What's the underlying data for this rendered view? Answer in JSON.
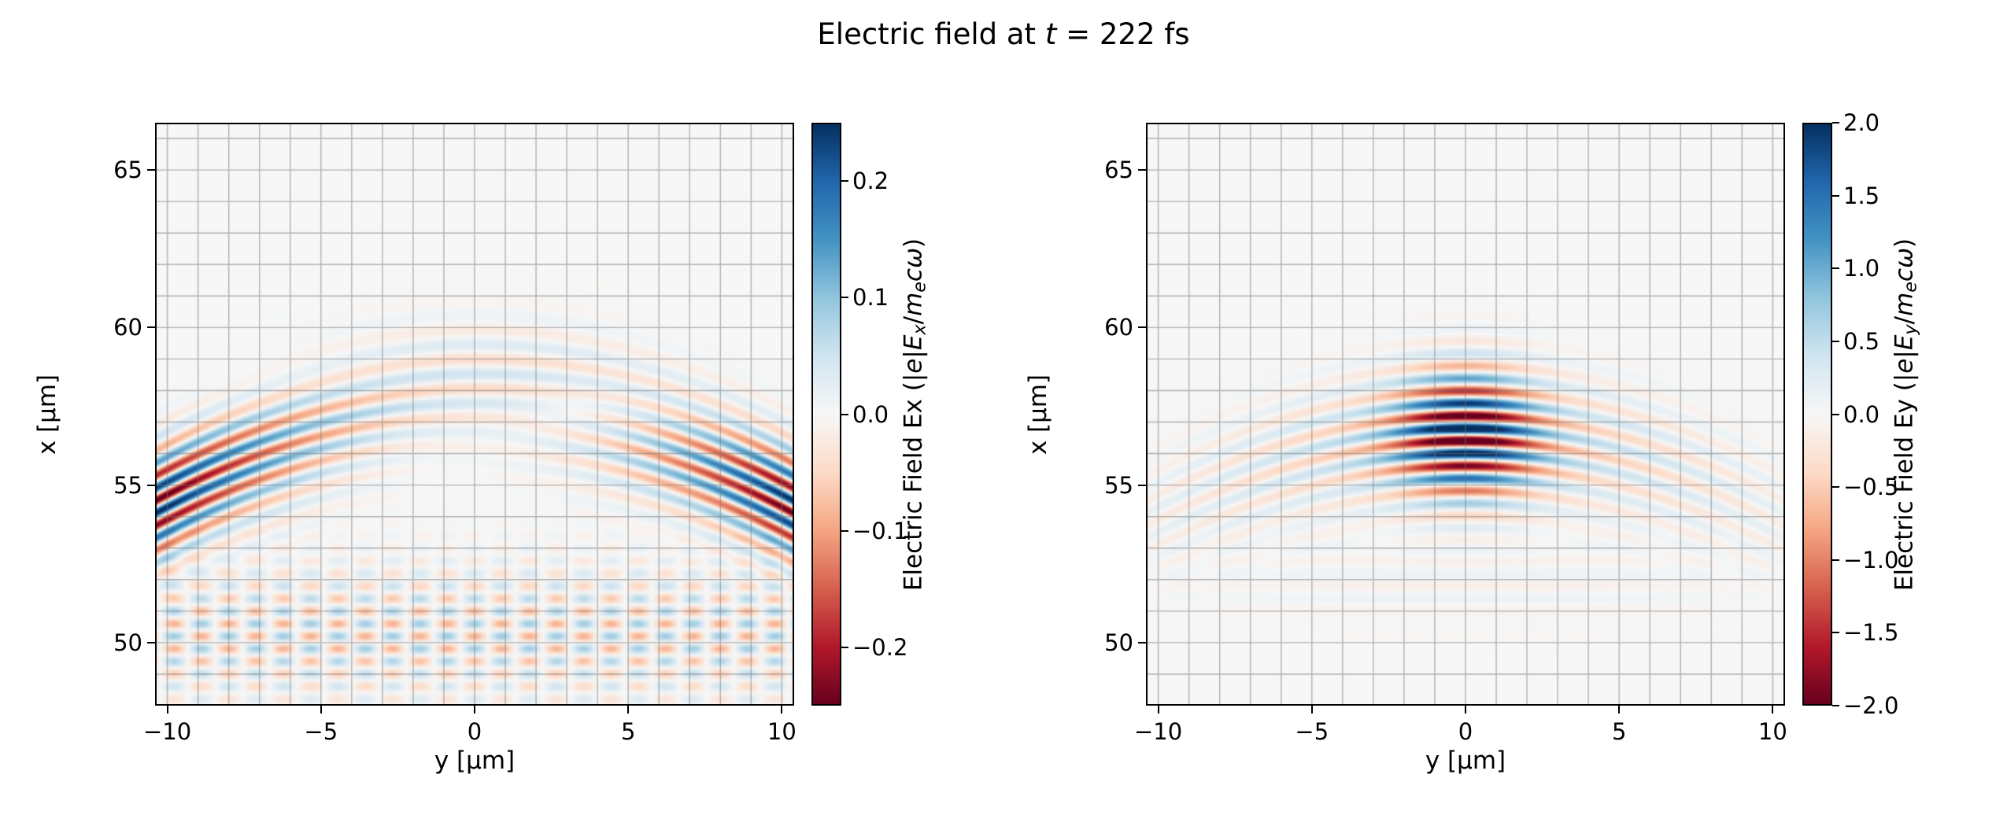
{
  "figure": {
    "title_parts": [
      {
        "t": "Electric field at ",
        "s": "n"
      },
      {
        "t": "t",
        "s": "i"
      },
      {
        "t": " = 222 fs",
        "s": "n"
      }
    ]
  },
  "colormap": {
    "name": "RdBu",
    "stops": [
      "#67001f",
      "#b2182b",
      "#d6604d",
      "#f4a582",
      "#fddbc7",
      "#f7f7f7",
      "#d1e5f0",
      "#92c5de",
      "#4393c3",
      "#2166ac",
      "#053061"
    ]
  },
  "chart_data": [
    {
      "type": "heatmap",
      "panel": "Ex",
      "xlabel": "y [μm]",
      "ylabel": "x [μm]",
      "xlim": [
        -10.4,
        10.4
      ],
      "ylim": [
        48.0,
        66.5
      ],
      "xticks": [
        {
          "v": -10,
          "label": "−10"
        },
        {
          "v": -5,
          "label": "−5"
        },
        {
          "v": 0,
          "label": "0"
        },
        {
          "v": 5,
          "label": "5"
        },
        {
          "v": 10,
          "label": "10"
        }
      ],
      "yticks": [
        {
          "v": 50,
          "label": "50"
        },
        {
          "v": 55,
          "label": "55"
        },
        {
          "v": 60,
          "label": "60"
        },
        {
          "v": 65,
          "label": "65"
        }
      ],
      "grid": {
        "x_spacing": 1,
        "y_spacing": 1,
        "color": "rgba(120,120,120,0.55)"
      },
      "colorbar": {
        "vmin": -0.25,
        "vmax": 0.25,
        "ticks": [
          {
            "v": 0.2,
            "label": "0.2"
          },
          {
            "v": 0.1,
            "label": "0.1"
          },
          {
            "v": 0.0,
            "label": "0.0"
          },
          {
            "v": -0.1,
            "label": "−0.1"
          },
          {
            "v": -0.2,
            "label": "−0.2"
          }
        ],
        "label_parts": [
          {
            "t": "Electric Field Ex (|",
            "s": "n"
          },
          {
            "t": "e",
            "s": "i"
          },
          {
            "t": "|",
            "s": "n"
          },
          {
            "t": "E",
            "s": "i"
          },
          {
            "t": "x",
            "s": "is"
          },
          {
            "t": "/",
            "s": "n"
          },
          {
            "t": "m",
            "s": "i"
          },
          {
            "t": "e",
            "s": "is"
          },
          {
            "t": "c",
            "s": "i"
          },
          {
            "t": "ω",
            "s": "i"
          },
          {
            "t": ")",
            "s": "n"
          }
        ]
      },
      "field_model": {
        "kind": "longitudinal",
        "wavelength_um": 0.8,
        "x_focus": 57.0,
        "front_curvature_R": 20,
        "env_sigma_x": 1.7,
        "amp": 0.26,
        "transverse_power": 1.6,
        "center_even_amp": 0.05,
        "bottom_wave_amp": 0.045,
        "bottom_wave_x0": 50.3,
        "bottom_wave_sigma": 2.1,
        "bottom_wave_slope": 0.45
      }
    },
    {
      "type": "heatmap",
      "panel": "Ey",
      "xlabel": "y [μm]",
      "ylabel": "x [μm]",
      "xlim": [
        -10.4,
        10.4
      ],
      "ylim": [
        48.0,
        66.5
      ],
      "xticks": [
        {
          "v": -10,
          "label": "−10"
        },
        {
          "v": -5,
          "label": "−5"
        },
        {
          "v": 0,
          "label": "0"
        },
        {
          "v": 5,
          "label": "5"
        },
        {
          "v": 10,
          "label": "10"
        }
      ],
      "yticks": [
        {
          "v": 50,
          "label": "50"
        },
        {
          "v": 55,
          "label": "55"
        },
        {
          "v": 60,
          "label": "60"
        },
        {
          "v": 65,
          "label": "65"
        }
      ],
      "grid": {
        "x_spacing": 1,
        "y_spacing": 1,
        "color": "rgba(120,120,120,0.55)"
      },
      "colorbar": {
        "vmin": -2.0,
        "vmax": 2.0,
        "ticks": [
          {
            "v": 2.0,
            "label": "2.0"
          },
          {
            "v": 1.5,
            "label": "1.5"
          },
          {
            "v": 1.0,
            "label": "1.0"
          },
          {
            "v": 0.5,
            "label": "0.5"
          },
          {
            "v": 0.0,
            "label": "0.0"
          },
          {
            "v": -0.5,
            "label": "−0.5"
          },
          {
            "v": -1.0,
            "label": "−1.0"
          },
          {
            "v": -1.5,
            "label": "−1.5"
          },
          {
            "v": -2.0,
            "label": "−2.0"
          }
        ],
        "label_parts": [
          {
            "t": "Electric Field Ey (|",
            "s": "n"
          },
          {
            "t": "e",
            "s": "i"
          },
          {
            "t": "|",
            "s": "n"
          },
          {
            "t": "E",
            "s": "i"
          },
          {
            "t": "y",
            "s": "is"
          },
          {
            "t": "/",
            "s": "n"
          },
          {
            "t": "m",
            "s": "i"
          },
          {
            "t": "e",
            "s": "is"
          },
          {
            "t": "c",
            "s": "i"
          },
          {
            "t": "ω",
            "s": "i"
          },
          {
            "t": ")",
            "s": "n"
          }
        ]
      },
      "field_model": {
        "kind": "transverse",
        "wavelength_um": 0.8,
        "x_focus": 56.6,
        "front_curvature_R": 20,
        "env_sigma_x": 1.9,
        "amp": 2.6,
        "core_sigma": 2.1,
        "wing_sigma": 8.5,
        "wing_frac": 0.25,
        "bottom_wave_amp": 0.12,
        "bottom_wave_x0": 52.0,
        "bottom_wave_sigma": 1.4
      }
    }
  ]
}
